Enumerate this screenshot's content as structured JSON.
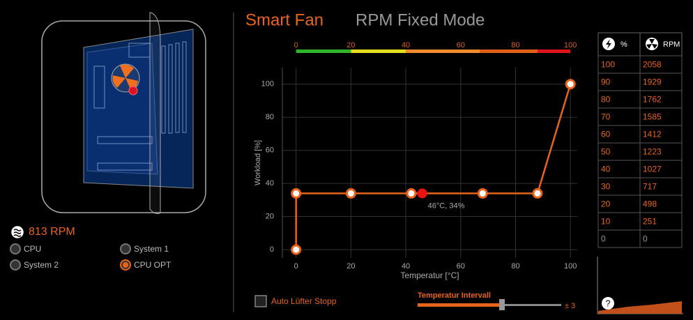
{
  "tabs": {
    "active": "Smart Fan",
    "inactive": "RPM Fixed Mode"
  },
  "fan_status": {
    "rpm": "813 RPM"
  },
  "fan_selector": [
    {
      "label": "CPU",
      "selected": false
    },
    {
      "label": "System 1",
      "selected": false
    },
    {
      "label": "System 2",
      "selected": false
    },
    {
      "label": "CPU OPT",
      "selected": true
    }
  ],
  "chart_data": {
    "type": "line",
    "x_label": "Temperatur [°C]",
    "y_label": "Workload [%]",
    "x": [
      0,
      0,
      20,
      42,
      68,
      88,
      100
    ],
    "series": [
      {
        "color": "#e8641c",
        "values": [
          0,
          34,
          34,
          34,
          34,
          34,
          100
        ]
      }
    ],
    "current": {
      "x": 46,
      "y": 34,
      "color": "#ee1111",
      "label": "46°C, 34%"
    },
    "xlim": [
      -5,
      102.5
    ],
    "ylim": [
      -5,
      110
    ],
    "xticks": [
      0,
      20,
      40,
      60,
      80,
      100
    ],
    "yticks": [
      0,
      20,
      40,
      60,
      80,
      100
    ],
    "grid": true,
    "temperature_bar": {
      "ticks": [
        0,
        20,
        40,
        60,
        80,
        100
      ],
      "segments": [
        {
          "from": 0,
          "to": 20,
          "color": "#2fb52a"
        },
        {
          "from": 20,
          "to": 40,
          "color": "#e6dc1e"
        },
        {
          "from": 40,
          "to": 67,
          "color": "#f08a2a"
        },
        {
          "from": 67,
          "to": 88,
          "color": "#e0601a"
        },
        {
          "from": 88,
          "to": 100,
          "color": "#e0141c"
        }
      ]
    }
  },
  "rpm_table": {
    "headers": [
      "%",
      "RPM"
    ],
    "rows": [
      [
        "100",
        "2058"
      ],
      [
        "90",
        "1929"
      ],
      [
        "80",
        "1762"
      ],
      [
        "70",
        "1585"
      ],
      [
        "60",
        "1412"
      ],
      [
        "50",
        "1223"
      ],
      [
        "40",
        "1027"
      ],
      [
        "30",
        "717"
      ],
      [
        "20",
        "498"
      ],
      [
        "10",
        "251"
      ],
      [
        "0",
        "0"
      ]
    ]
  },
  "controls": {
    "auto_stop": {
      "label": "Auto Lüfter Stopp",
      "checked": false
    },
    "interval": {
      "label": "Temperatur Intervall",
      "value_label": "± 3"
    },
    "help": "?"
  }
}
